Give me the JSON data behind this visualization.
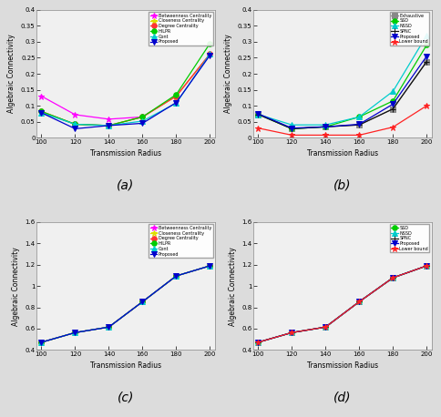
{
  "x": [
    100,
    120,
    140,
    160,
    180,
    200
  ],
  "subplot_a": {
    "Betweenness Centrality": {
      "y": [
        0.13,
        0.072,
        0.058,
        0.065,
        0.13,
        0.262
      ],
      "color": "#FF00FF",
      "marker": "*",
      "ms": 5
    },
    "Closeness Centrality": {
      "y": [
        0.082,
        0.042,
        0.038,
        0.065,
        0.13,
        0.262
      ],
      "color": "#DDDD00",
      "marker": "*",
      "ms": 5
    },
    "Degree Centrality": {
      "y": [
        0.082,
        0.042,
        0.038,
        0.065,
        0.13,
        0.262
      ],
      "color": "#FF3333",
      "marker": "o",
      "ms": 4
    },
    "HILPR": {
      "y": [
        0.082,
        0.042,
        0.038,
        0.065,
        0.135,
        0.295
      ],
      "color": "#00CC00",
      "marker": "o",
      "ms": 4
    },
    "Cont": {
      "y": [
        0.078,
        0.042,
        0.038,
        0.052,
        0.108,
        0.262
      ],
      "color": "#00CCCC",
      "marker": "^",
      "ms": 4
    },
    "Proposed": {
      "y": [
        0.078,
        0.028,
        0.038,
        0.045,
        0.11,
        0.258
      ],
      "color": "#0000CC",
      "marker": "v",
      "ms": 4
    }
  },
  "subplot_b": {
    "Exhaustive": {
      "y": [
        0.073,
        0.028,
        0.034,
        0.04,
        0.09,
        0.238
      ],
      "color": "#888888",
      "marker": "s",
      "ms": 4
    },
    "SSD": {
      "y": [
        0.073,
        0.028,
        0.034,
        0.065,
        0.115,
        0.29
      ],
      "color": "#00CC00",
      "marker": "o",
      "ms": 4
    },
    "NSSD": {
      "y": [
        0.073,
        0.04,
        0.04,
        0.065,
        0.145,
        0.32
      ],
      "color": "#00CCCC",
      "marker": "^",
      "ms": 4
    },
    "SPNC": {
      "y": [
        0.073,
        0.028,
        0.034,
        0.04,
        0.09,
        0.238
      ],
      "color": "#111111",
      "marker": "+",
      "ms": 5
    },
    "Proposed": {
      "y": [
        0.075,
        0.03,
        0.034,
        0.042,
        0.105,
        0.255
      ],
      "color": "#0000CC",
      "marker": "v",
      "ms": 4
    },
    "Lower bound": {
      "y": [
        0.03,
        0.008,
        0.008,
        0.008,
        0.033,
        0.1
      ],
      "color": "#FF2222",
      "marker": "*",
      "ms": 5
    }
  },
  "subplot_c": {
    "Betweenness Centrality": {
      "y": [
        0.472,
        0.563,
        0.615,
        0.853,
        1.095,
        1.19
      ],
      "color": "#FF00FF",
      "marker": "*",
      "ms": 5
    },
    "Closeness Centrality": {
      "y": [
        0.472,
        0.563,
        0.615,
        0.853,
        1.095,
        1.19
      ],
      "color": "#DDDD00",
      "marker": "*",
      "ms": 5
    },
    "Degree Centrality": {
      "y": [
        0.472,
        0.563,
        0.615,
        0.853,
        1.095,
        1.19
      ],
      "color": "#FF3333",
      "marker": "o",
      "ms": 4
    },
    "HILPR": {
      "y": [
        0.472,
        0.563,
        0.615,
        0.853,
        1.095,
        1.19
      ],
      "color": "#00CC00",
      "marker": "o",
      "ms": 4
    },
    "Cont": {
      "y": [
        0.472,
        0.563,
        0.615,
        0.853,
        1.095,
        1.19
      ],
      "color": "#00CCCC",
      "marker": "^",
      "ms": 4
    },
    "Proposed": {
      "y": [
        0.472,
        0.563,
        0.615,
        0.853,
        1.095,
        1.19
      ],
      "color": "#0000CC",
      "marker": "v",
      "ms": 4
    }
  },
  "subplot_d": {
    "SSD": {
      "y": [
        0.472,
        0.563,
        0.615,
        0.853,
        1.078,
        1.19
      ],
      "color": "#00CC00",
      "marker": "o",
      "ms": 4
    },
    "NSSD": {
      "y": [
        0.472,
        0.563,
        0.615,
        0.853,
        1.078,
        1.19
      ],
      "color": "#00CCCC",
      "marker": "^",
      "ms": 4
    },
    "SPNC": {
      "y": [
        0.472,
        0.563,
        0.615,
        0.853,
        1.078,
        1.19
      ],
      "color": "#111111",
      "marker": "+",
      "ms": 5
    },
    "Proposed": {
      "y": [
        0.472,
        0.563,
        0.615,
        0.853,
        1.078,
        1.19
      ],
      "color": "#0000CC",
      "marker": "v",
      "ms": 4
    },
    "Lower bound": {
      "y": [
        0.472,
        0.563,
        0.615,
        0.853,
        1.078,
        1.19
      ],
      "color": "#FF2222",
      "marker": "*",
      "ms": 5
    }
  },
  "ylim_ab": [
    0,
    0.4
  ],
  "ylim_cd": [
    0.4,
    1.6
  ],
  "yticks_ab": [
    0,
    0.05,
    0.1,
    0.15,
    0.2,
    0.25,
    0.3,
    0.35,
    0.4
  ],
  "yticks_cd": [
    0.4,
    0.6,
    0.8,
    1.0,
    1.2,
    1.4,
    1.6
  ],
  "xticks": [
    100,
    120,
    140,
    160,
    180,
    200
  ],
  "xlabel": "Transmission Radius",
  "ylabel": "Algebraic Connectivity",
  "label_a": "(a)",
  "label_b": "(b)",
  "label_c": "(c)",
  "label_d": "(d)",
  "bg_color": "#F0F0F0",
  "fig_bg": "#DCDCDC"
}
